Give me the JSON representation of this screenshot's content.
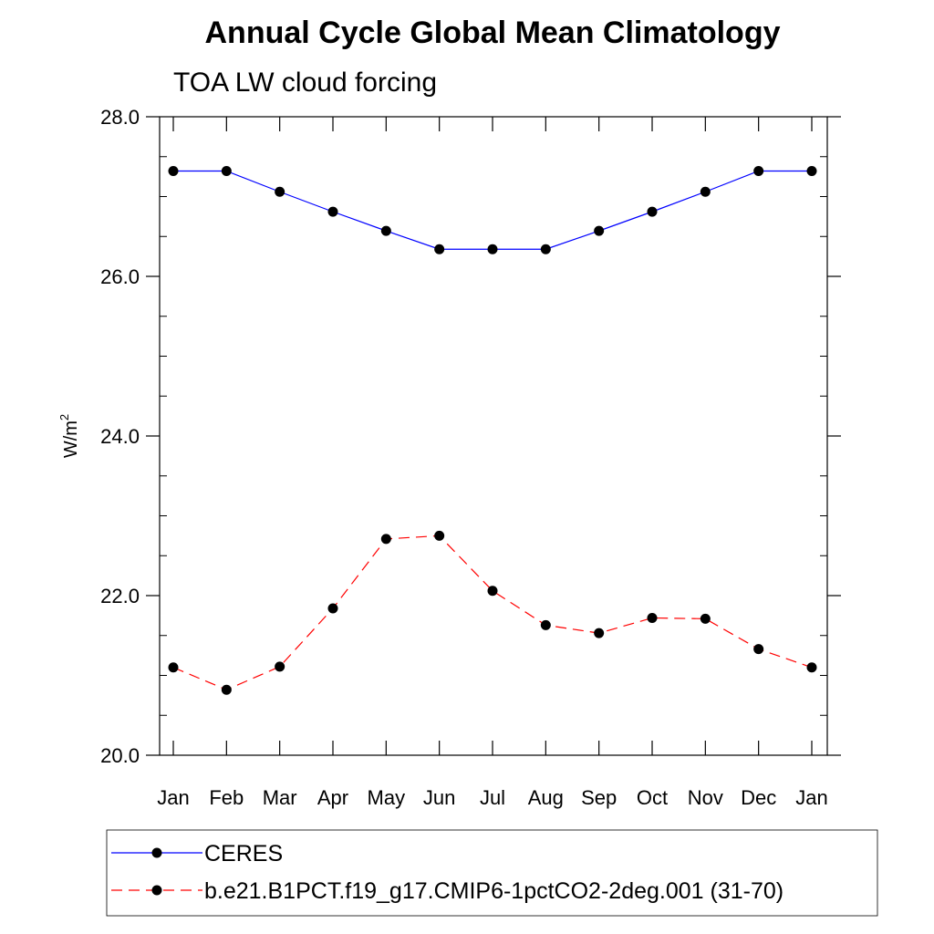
{
  "chart_data": {
    "type": "line",
    "title": "Annual Cycle Global Mean Climatology",
    "subtitle": "TOA LW cloud forcing",
    "xlabel": "",
    "ylabel": "W/m",
    "ylabel_superscript": "2",
    "categories": [
      "Jan",
      "Feb",
      "Mar",
      "Apr",
      "May",
      "Jun",
      "Jul",
      "Aug",
      "Sep",
      "Oct",
      "Nov",
      "Dec",
      "Jan"
    ],
    "ylim": [
      20.0,
      28.0
    ],
    "yticks": [
      "20.0",
      "22.0",
      "24.0",
      "26.0",
      "28.0"
    ],
    "ytick_values": [
      20,
      22,
      24,
      26,
      28
    ],
    "yminor_step": 0.5,
    "grid": false,
    "legend_placement": "bottom",
    "series": [
      {
        "name": "CERES",
        "color": "#0000ff",
        "dash": "solid",
        "marker": "filled-circle",
        "values": [
          27.32,
          27.32,
          27.06,
          26.81,
          26.57,
          26.34,
          26.34,
          26.34,
          26.57,
          26.81,
          27.06,
          27.32,
          27.32
        ]
      },
      {
        "name": "b.e21.B1PCT.f19_g17.CMIP6-1pctCO2-2deg.001 (31-70)",
        "color": "#ff0000",
        "dash": "dashed",
        "marker": "filled-circle",
        "values": [
          21.1,
          20.82,
          21.11,
          21.84,
          22.71,
          22.75,
          22.06,
          21.63,
          21.53,
          21.72,
          21.71,
          21.33,
          21.1
        ]
      }
    ]
  }
}
